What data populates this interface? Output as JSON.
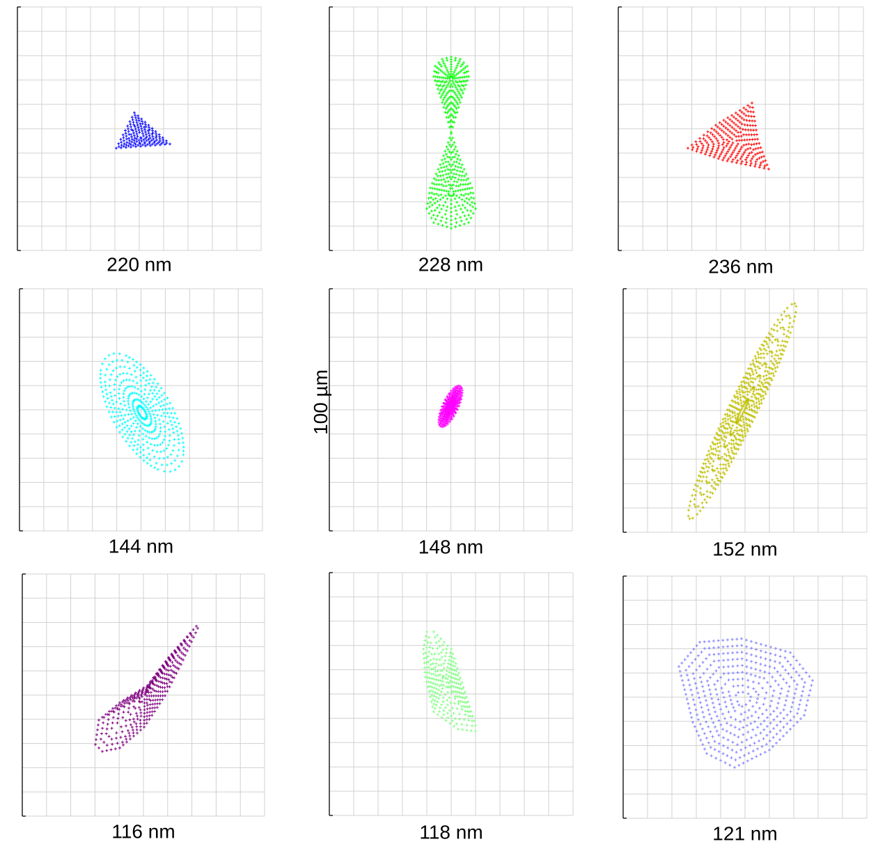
{
  "panels": [
    {
      "label": "220 nm",
      "color": "#0000ff"
    },
    {
      "label": "228 nm",
      "color": "#00ff00"
    },
    {
      "label": "236 nm",
      "color": "#ff0000"
    },
    {
      "label": "144 nm",
      "color": "#00ffff"
    },
    {
      "label": "148 nm",
      "color": "#ff00ff"
    },
    {
      "label": "152 nm",
      "color": "#bfbf00"
    },
    {
      "label": "116 nm",
      "color": "#800080"
    },
    {
      "label": "118 nm",
      "color": "#80ff80"
    },
    {
      "label": "121 nm",
      "color": "#8080ff"
    }
  ],
  "scale_label": "100 µm"
}
